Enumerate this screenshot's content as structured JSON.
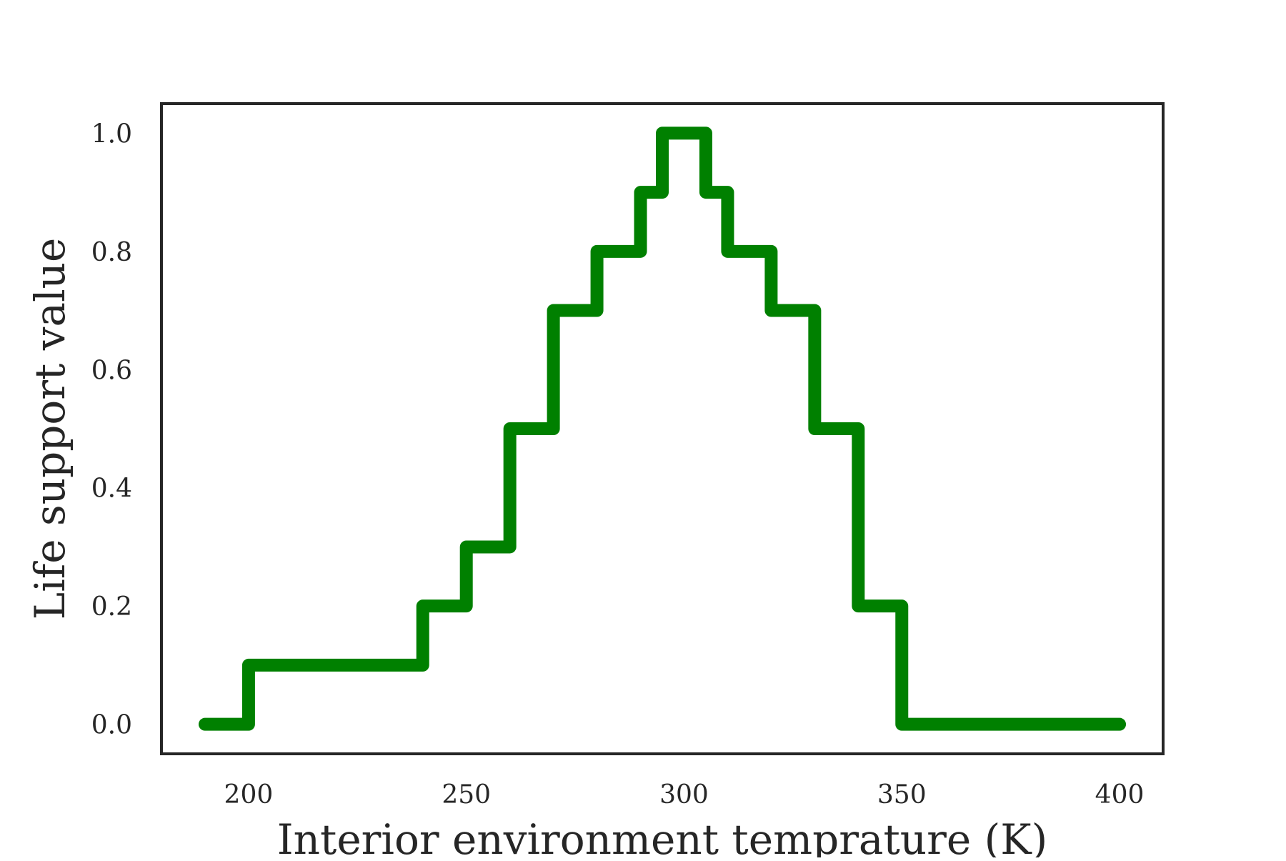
{
  "chart_data": {
    "type": "line",
    "drawstyle": "steps-post",
    "title": "",
    "xlabel": "Interior environment temprature (K)",
    "ylabel": "Life support value",
    "xlim": [
      180,
      410
    ],
    "ylim": [
      -0.05,
      1.05
    ],
    "xticks": [
      200,
      250,
      300,
      350,
      400
    ],
    "yticks": [
      0.0,
      0.2,
      0.4,
      0.6,
      0.8,
      1.0
    ],
    "xtick_labels": [
      "200",
      "250",
      "300",
      "350",
      "400"
    ],
    "ytick_labels": [
      "0.0",
      "0.2",
      "0.4",
      "0.6",
      "0.8",
      "1.0"
    ],
    "grid": false,
    "series": [
      {
        "color": "#008000",
        "x": [
          190,
          200,
          240,
          250,
          260,
          270,
          280,
          290,
          295,
          305,
          310,
          320,
          330,
          340,
          350,
          400
        ],
        "y": [
          0.0,
          0.1,
          0.2,
          0.3,
          0.5,
          0.7,
          0.8,
          0.9,
          1.0,
          0.9,
          0.8,
          0.7,
          0.5,
          0.2,
          0.0,
          0.0
        ]
      }
    ]
  }
}
